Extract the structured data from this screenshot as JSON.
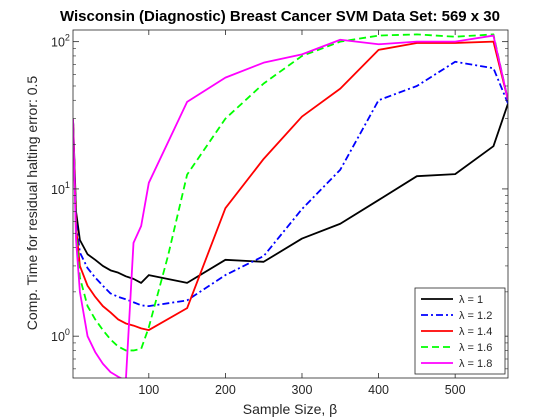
{
  "chart_data": {
    "type": "line",
    "title": "Wisconsin (Diagnostic) Breast Cancer SVM Data Set: 569 x 30",
    "xlabel": "Sample Size, β",
    "ylabel": "Comp. Time for residual halting error: 0.5",
    "xlim": [
      1,
      569
    ],
    "ylim": [
      0.52,
      120
    ],
    "yscale": "log",
    "grid": false,
    "legend_position": "bottom-right",
    "x_ticks": [
      100,
      200,
      300,
      400,
      500
    ],
    "y_ticks": [
      {
        "value": 1,
        "base": "10",
        "exp": "0"
      },
      {
        "value": 10,
        "base": "10",
        "exp": "1"
      },
      {
        "value": 100,
        "base": "10",
        "exp": "2"
      }
    ],
    "series": [
      {
        "name": "λ = 1",
        "color": "#000000",
        "dash": "solid",
        "x": [
          1,
          5,
          10,
          20,
          30,
          40,
          50,
          60,
          70,
          80,
          90,
          100,
          150,
          200,
          250,
          300,
          350,
          400,
          450,
          500,
          550,
          569
        ],
        "y": [
          30,
          7,
          4.5,
          3.6,
          3.3,
          3.0,
          2.8,
          2.7,
          2.55,
          2.45,
          2.3,
          2.6,
          2.3,
          3.3,
          3.2,
          4.6,
          5.8,
          8.4,
          12.2,
          12.6,
          19.5,
          38
        ]
      },
      {
        "name": "λ = 1.2",
        "color": "#0000ff",
        "dash": "dashdot",
        "x": [
          1,
          5,
          10,
          20,
          30,
          40,
          50,
          60,
          70,
          80,
          90,
          100,
          150,
          200,
          250,
          300,
          350,
          400,
          450,
          500,
          550,
          569
        ],
        "y": [
          30,
          6,
          3.7,
          2.9,
          2.5,
          2.2,
          1.95,
          1.85,
          1.78,
          1.7,
          1.62,
          1.6,
          1.75,
          2.6,
          3.5,
          7.3,
          13.5,
          40,
          50,
          73,
          66,
          38
        ]
      },
      {
        "name": "λ = 1.4",
        "color": "#ff0000",
        "dash": "solid",
        "x": [
          1,
          5,
          10,
          20,
          30,
          40,
          50,
          60,
          70,
          80,
          90,
          100,
          150,
          200,
          250,
          300,
          350,
          400,
          450,
          500,
          550,
          569
        ],
        "y": [
          30,
          5.5,
          3.0,
          2.2,
          1.85,
          1.6,
          1.45,
          1.3,
          1.22,
          1.18,
          1.13,
          1.1,
          1.55,
          7.4,
          16,
          31,
          48,
          88,
          98,
          98,
          100,
          40
        ]
      },
      {
        "name": "λ = 1.6",
        "color": "#00ff00",
        "dash": "dashed",
        "x": [
          1,
          5,
          10,
          20,
          30,
          40,
          50,
          60,
          70,
          80,
          90,
          100,
          125,
          150,
          200,
          250,
          300,
          350,
          400,
          450,
          500,
          550,
          569
        ],
        "y": [
          30,
          5,
          2.5,
          1.6,
          1.3,
          1.1,
          0.95,
          0.85,
          0.8,
          0.8,
          0.82,
          1.15,
          3.5,
          12.5,
          30,
          52,
          80,
          100,
          110,
          112,
          108,
          112,
          40
        ]
      },
      {
        "name": "λ = 1.8",
        "color": "#ff00ff",
        "dash": "solid",
        "x": [
          1,
          5,
          10,
          20,
          30,
          40,
          50,
          60,
          70,
          80,
          90,
          100,
          150,
          200,
          250,
          300,
          350,
          400,
          450,
          500,
          550,
          569
        ],
        "y": [
          30,
          4.5,
          2.0,
          1.0,
          0.78,
          0.65,
          0.57,
          0.53,
          0.5,
          4.3,
          5.6,
          11,
          39,
          57,
          72,
          82,
          103,
          96,
          100,
          100,
          110,
          40
        ]
      }
    ]
  }
}
